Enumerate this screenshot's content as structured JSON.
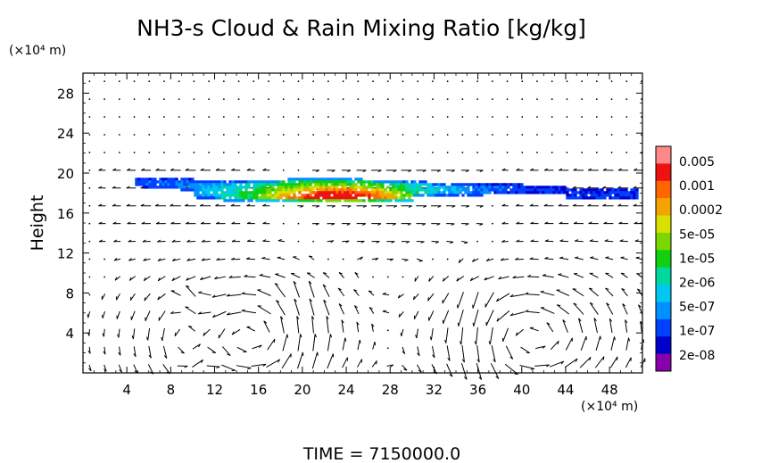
{
  "chart_data": {
    "type": "heatmap",
    "title": "NH3-s Cloud & Rain Mixing Ratio [kg/kg]",
    "xlabel": "",
    "ylabel": "Height",
    "x_unit_label": "(×10⁴ m)",
    "y_unit_label": "(×10⁴ m)",
    "xlim": [
      0,
      51
    ],
    "ylim": [
      0,
      30
    ],
    "xticks": [
      "4",
      "8",
      "12",
      "16",
      "20",
      "24",
      "28",
      "32",
      "36",
      "40",
      "44",
      "48"
    ],
    "yticks": [
      "4",
      "8",
      "12",
      "16",
      "20",
      "24",
      "28"
    ],
    "colorbar": {
      "labels": [
        "0.005",
        "0.001",
        "0.0002",
        "5e-05",
        "1e-05",
        "2e-06",
        "5e-07",
        "1e-07",
        "2e-08"
      ],
      "colors": [
        "#ff8888",
        "#ee1111",
        "#ff6600",
        "#f4a400",
        "#d8e000",
        "#7ad800",
        "#10d010",
        "#00d8a0",
        "#00c8f0",
        "#0090ff",
        "#0040ff",
        "#0000cc",
        "#8800aa"
      ]
    },
    "cloud_layer": {
      "x_range": [
        4.5,
        50.5
      ],
      "height_range": [
        17,
        19.8
      ],
      "max_value": 0.001,
      "max_location": {
        "x": 23.5,
        "height": 17.4
      },
      "min_value": 2e-08
    },
    "wind_vectors": {
      "note": "",
      "upper_flow_heights": [
        9,
        30
      ],
      "lower_circulation_centers": [
        {
          "x": 15,
          "height": 3.5
        },
        {
          "x": 41,
          "height": 3.5
        }
      ]
    }
  },
  "footer": {
    "time_label": "TIME  =  7150000.0"
  }
}
